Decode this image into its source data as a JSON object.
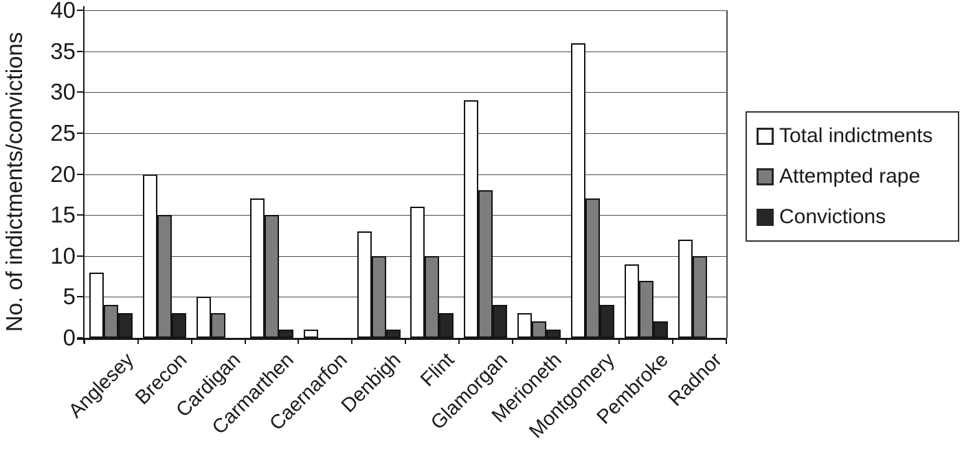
{
  "chart_data": {
    "type": "bar",
    "title": "",
    "xlabel": "",
    "ylabel": "No. of indictments/convictions",
    "ylim": [
      0,
      40
    ],
    "ytick_step": 5,
    "grid": true,
    "legend_position": "right",
    "categories": [
      "Anglesey",
      "Brecon",
      "Cardigan",
      "Carmarthen",
      "Caernarfon",
      "Denbigh",
      "Flint",
      "Glamorgan",
      "Merioneth",
      "Montgomery",
      "Pembroke",
      "Radnor"
    ],
    "series": [
      {
        "name": "Total indictments",
        "color": "#ffffff",
        "values": [
          8,
          20,
          5,
          17,
          1,
          13,
          16,
          29,
          3,
          36,
          9,
          12
        ]
      },
      {
        "name": "Attempted rape",
        "color": "#7d7d7d",
        "values": [
          4,
          15,
          3,
          15,
          0,
          10,
          10,
          18,
          2,
          17,
          7,
          10
        ]
      },
      {
        "name": "Convictions",
        "color": "#262626",
        "values": [
          3,
          3,
          0,
          1,
          0,
          1,
          3,
          4,
          1,
          4,
          2,
          0
        ]
      }
    ],
    "colors": {
      "axis": "#1a1a1a",
      "gridline": "#4a4a4a",
      "bar_border": "#141414",
      "legend_border": "#333333",
      "background": "#ffffff"
    }
  }
}
